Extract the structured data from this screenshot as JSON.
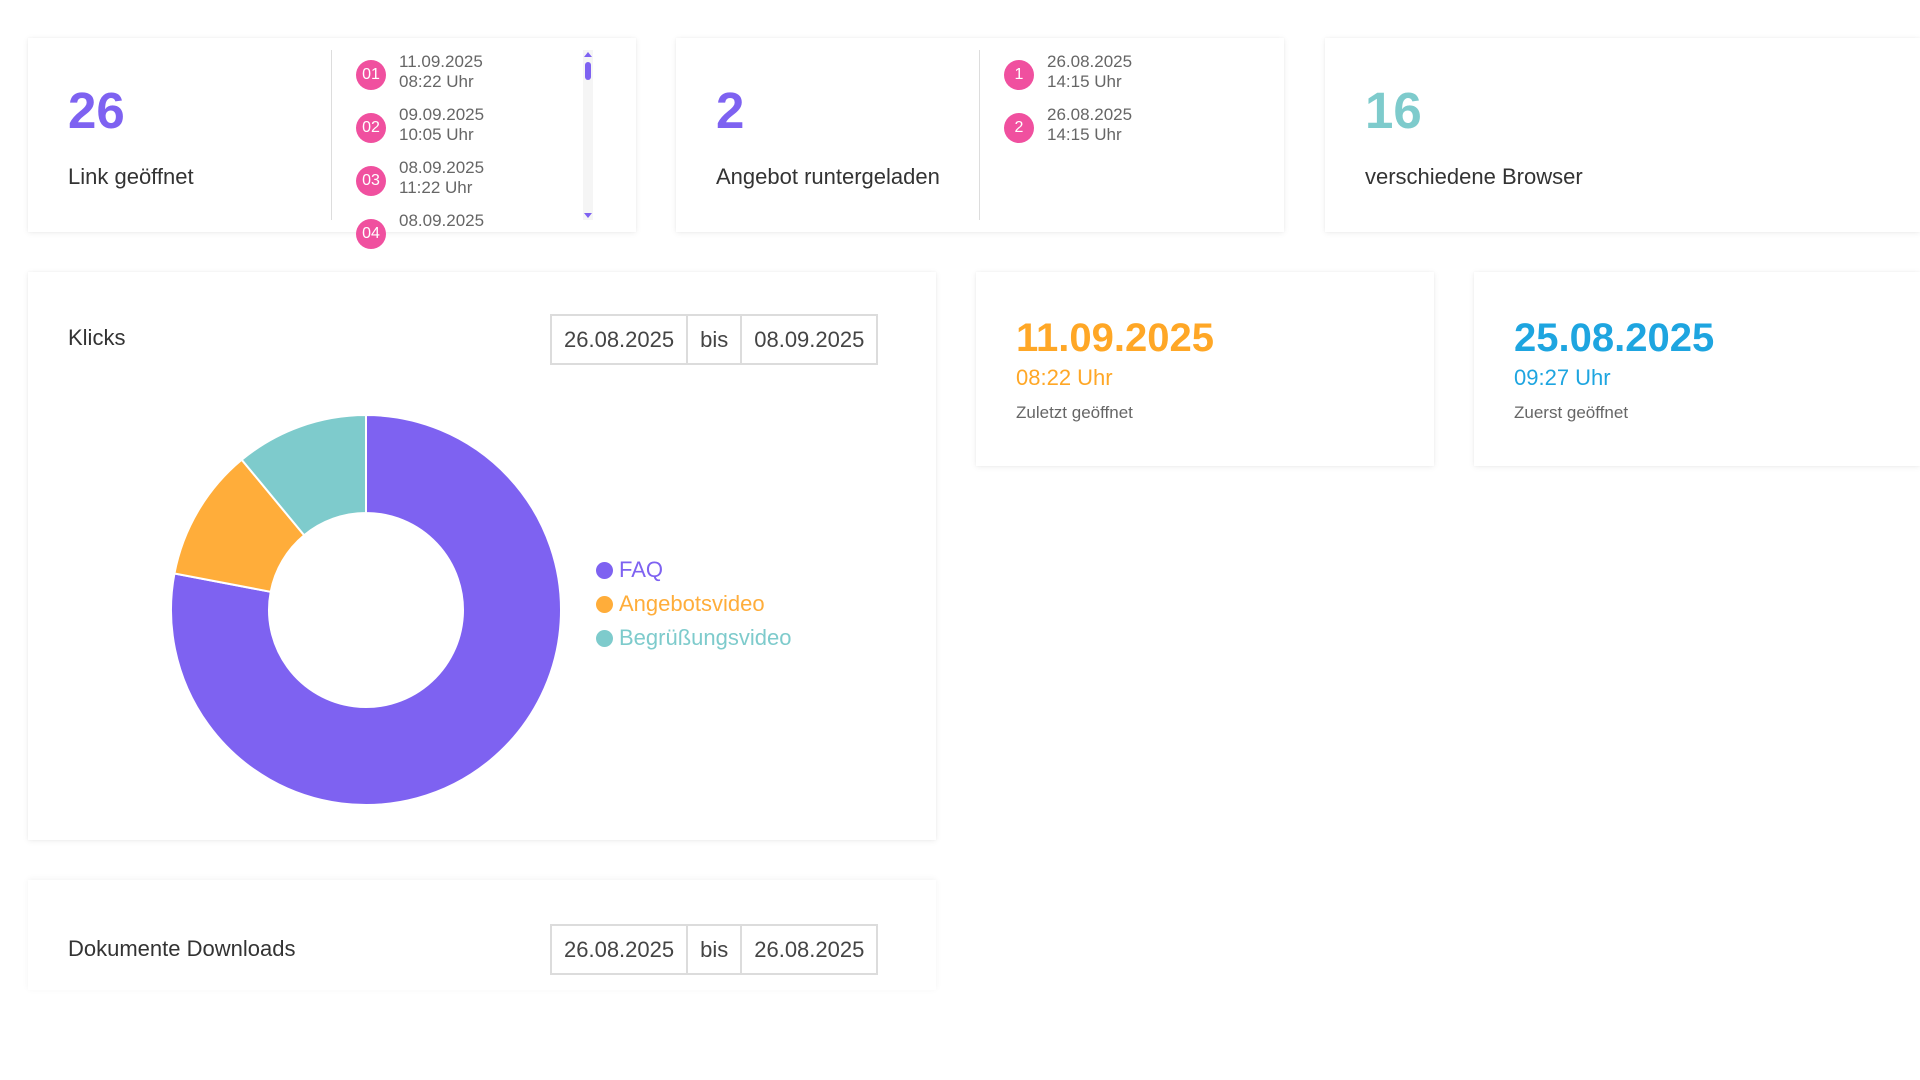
{
  "stat_link": {
    "value": "26",
    "label": "Link geöffnet",
    "events": [
      {
        "badge": "01",
        "date": "11.09.2025",
        "time": "08:22 Uhr"
      },
      {
        "badge": "02",
        "date": "09.09.2025",
        "time": "10:05 Uhr"
      },
      {
        "badge": "03",
        "date": "08.09.2025",
        "time": "11:22 Uhr"
      },
      {
        "badge": "04",
        "date": "08.09.2025",
        "time": ""
      }
    ]
  },
  "stat_offer": {
    "value": "2",
    "label": "Angebot runtergeladen",
    "events": [
      {
        "badge": "1",
        "date": "26.08.2025",
        "time": "14:15 Uhr"
      },
      {
        "badge": "2",
        "date": "26.08.2025",
        "time": "14:15 Uhr"
      }
    ]
  },
  "stat_browser": {
    "value": "16",
    "label": "verschiedene Browser"
  },
  "clicks": {
    "title": "Klicks",
    "date_from": "26.08.2025",
    "date_sep": "bis",
    "date_to": "08.09.2025"
  },
  "chart_data": {
    "type": "pie",
    "donut": true,
    "categories": [
      "FAQ",
      "Angebotsvideo",
      "Begrüßungsvideo"
    ],
    "values": [
      78,
      11,
      11
    ],
    "colors": [
      "#7e62f1",
      "#ffad3a",
      "#7ecbcc"
    ],
    "legend": "right"
  },
  "last_opened": {
    "date": "11.09.2025",
    "time": "08:22 Uhr",
    "label": "Zuletzt geöffnet",
    "color": "#ffa726"
  },
  "first_opened": {
    "date": "25.08.2025",
    "time": "09:27 Uhr",
    "label": "Zuerst geöffnet",
    "color": "#1ea5e0"
  },
  "downloads": {
    "title": "Dokumente Downloads",
    "date_from": "26.08.2025",
    "date_sep": "bis",
    "date_to": "26.08.2025"
  },
  "colors": {
    "purple": "#7e62f1",
    "teal": "#7ecbcc",
    "pink": "#f0509f"
  },
  "icons": [
    "scroll-up-arrow-icon",
    "scroll-down-arrow-icon",
    "legend-dot-icon"
  ]
}
